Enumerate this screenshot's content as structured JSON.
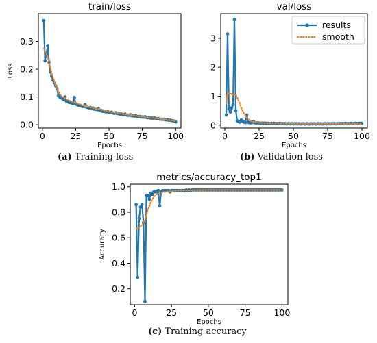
{
  "colors": {
    "results": "#1f77b4",
    "smooth": "#ff7f0e",
    "axis": "#000000"
  },
  "legend": {
    "placement": "top-right",
    "results_label": "results",
    "smooth_label": "smooth"
  },
  "captions": [
    {
      "letter": "(a)",
      "text": " Training loss"
    },
    {
      "letter": "(b)",
      "text": " Validation loss"
    },
    {
      "letter": "(c)",
      "text": " Training accuracy"
    }
  ],
  "chart_data": [
    {
      "type": "line",
      "title": "train/loss",
      "xlabel": "Epochs",
      "ylabel": "Loss",
      "xlim": [
        -3,
        104
      ],
      "ylim": [
        -0.012,
        0.4
      ],
      "xticks": [
        0,
        25,
        50,
        75,
        100
      ],
      "yticks": [
        0.0,
        0.1,
        0.2,
        0.3
      ],
      "ytick_labels": [
        "0.0",
        "0.1",
        "0.2",
        "0.3"
      ],
      "legend": false,
      "series": [
        {
          "name": "results",
          "style": "line-marker",
          "x": [
            1,
            2,
            3,
            4,
            5,
            6,
            7,
            8,
            9,
            10,
            11,
            12,
            13,
            14,
            15,
            16,
            17,
            18,
            19,
            20,
            21,
            22,
            23,
            24,
            25,
            26,
            27,
            28,
            29,
            30,
            31,
            32,
            33,
            34,
            35,
            36,
            37,
            38,
            39,
            40,
            41,
            42,
            43,
            44,
            45,
            46,
            47,
            48,
            49,
            50,
            51,
            52,
            53,
            54,
            55,
            56,
            57,
            58,
            59,
            60,
            61,
            62,
            63,
            64,
            65,
            66,
            67,
            68,
            69,
            70,
            71,
            72,
            73,
            74,
            75,
            76,
            77,
            78,
            79,
            80,
            81,
            82,
            83,
            84,
            85,
            86,
            87,
            88,
            89,
            90,
            91,
            92,
            93,
            94,
            95,
            96,
            97,
            98,
            99,
            100
          ],
          "y": [
            0.375,
            0.23,
            0.255,
            0.285,
            0.225,
            0.19,
            0.175,
            0.16,
            0.15,
            0.14,
            0.13,
            0.105,
            0.1,
            0.098,
            0.094,
            0.09,
            0.1,
            0.085,
            0.085,
            0.08,
            0.08,
            0.078,
            0.076,
            0.098,
            0.075,
            0.072,
            0.07,
            0.07,
            0.068,
            0.066,
            0.065,
            0.072,
            0.063,
            0.062,
            0.06,
            0.062,
            0.058,
            0.06,
            0.056,
            0.055,
            0.054,
            0.058,
            0.05,
            0.052,
            0.048,
            0.05,
            0.047,
            0.046,
            0.048,
            0.044,
            0.043,
            0.045,
            0.042,
            0.041,
            0.043,
            0.04,
            0.04,
            0.038,
            0.039,
            0.037,
            0.036,
            0.038,
            0.035,
            0.034,
            0.034,
            0.036,
            0.032,
            0.032,
            0.031,
            0.033,
            0.03,
            0.029,
            0.03,
            0.028,
            0.028,
            0.027,
            0.029,
            0.026,
            0.025,
            0.026,
            0.024,
            0.024,
            0.023,
            0.025,
            0.022,
            0.021,
            0.022,
            0.02,
            0.02,
            0.019,
            0.02,
            0.018,
            0.017,
            0.018,
            0.016,
            0.016,
            0.015,
            0.014,
            0.013,
            0.01
          ]
        },
        {
          "name": "smooth",
          "style": "dotted",
          "x": [
            1,
            3,
            5,
            7,
            9,
            11,
            13,
            15,
            20,
            25,
            30,
            40,
            50,
            60,
            70,
            80,
            90,
            100
          ],
          "y": [
            0.275,
            0.255,
            0.225,
            0.185,
            0.155,
            0.13,
            0.11,
            0.1,
            0.087,
            0.078,
            0.07,
            0.058,
            0.047,
            0.039,
            0.032,
            0.026,
            0.02,
            0.013
          ]
        }
      ]
    },
    {
      "type": "line",
      "title": "val/loss",
      "xlabel": "Epochs",
      "ylabel": "",
      "xlim": [
        -3,
        104
      ],
      "ylim": [
        -0.1,
        3.85
      ],
      "xticks": [
        0,
        25,
        50,
        75,
        100
      ],
      "yticks": [
        0,
        1,
        2,
        3
      ],
      "ytick_labels": [
        "0",
        "1",
        "2",
        "3"
      ],
      "legend": true,
      "series": [
        {
          "name": "results",
          "style": "line-marker",
          "x": [
            1,
            2,
            3,
            4,
            5,
            6,
            7,
            8,
            9,
            10,
            11,
            12,
            13,
            14,
            15,
            16,
            17,
            18,
            19,
            20,
            21,
            22,
            23,
            24,
            25,
            26,
            27,
            28,
            29,
            30,
            31,
            32,
            33,
            34,
            35,
            36,
            37,
            38,
            39,
            40,
            41,
            42,
            43,
            44,
            45,
            46,
            47,
            48,
            49,
            50,
            51,
            52,
            53,
            54,
            55,
            56,
            57,
            58,
            59,
            60,
            61,
            62,
            63,
            64,
            65,
            66,
            67,
            68,
            69,
            70,
            71,
            72,
            73,
            74,
            75,
            76,
            77,
            78,
            79,
            80,
            81,
            82,
            83,
            84,
            85,
            86,
            87,
            88,
            89,
            90,
            91,
            92,
            93,
            94,
            95,
            96,
            97,
            98,
            99,
            100
          ],
          "y": [
            0.35,
            3.15,
            0.55,
            0.45,
            0.6,
            0.7,
            3.65,
            0.5,
            0.15,
            0.12,
            0.1,
            0.18,
            0.13,
            0.1,
            0.09,
            0.35,
            0.1,
            0.08,
            0.08,
            0.09,
            0.12,
            0.08,
            0.07,
            0.08,
            0.07,
            0.06,
            0.07,
            0.06,
            0.07,
            0.06,
            0.06,
            0.06,
            0.05,
            0.06,
            0.05,
            0.06,
            0.05,
            0.05,
            0.05,
            0.06,
            0.05,
            0.05,
            0.05,
            0.05,
            0.04,
            0.05,
            0.05,
            0.04,
            0.05,
            0.04,
            0.05,
            0.05,
            0.04,
            0.05,
            0.04,
            0.04,
            0.05,
            0.04,
            0.04,
            0.05,
            0.04,
            0.04,
            0.05,
            0.04,
            0.05,
            0.04,
            0.04,
            0.05,
            0.04,
            0.05,
            0.04,
            0.04,
            0.05,
            0.04,
            0.05,
            0.05,
            0.04,
            0.05,
            0.05,
            0.05,
            0.04,
            0.05,
            0.05,
            0.05,
            0.05,
            0.05,
            0.05,
            0.06,
            0.05,
            0.05,
            0.05,
            0.06,
            0.05,
            0.05,
            0.06,
            0.06,
            0.05,
            0.06,
            0.06,
            0.06
          ]
        },
        {
          "name": "smooth",
          "style": "dotted",
          "x": [
            1,
            2,
            4,
            6,
            8,
            10,
            12,
            14,
            16,
            18,
            20,
            25,
            30,
            40,
            50,
            60,
            70,
            80,
            90,
            100
          ],
          "y": [
            0.75,
            1.1,
            1.1,
            1.05,
            1.05,
            0.85,
            0.6,
            0.4,
            0.25,
            0.17,
            0.12,
            0.08,
            0.07,
            0.06,
            0.05,
            0.05,
            0.05,
            0.05,
            0.05,
            0.05
          ]
        }
      ]
    },
    {
      "type": "line",
      "title": "metrics/accuracy_top1",
      "xlabel": "Epochs",
      "ylabel": "Accuracy",
      "xlim": [
        -3,
        104
      ],
      "ylim": [
        0.075,
        1.02
      ],
      "xticks": [
        0,
        25,
        50,
        75,
        100
      ],
      "yticks": [
        0.2,
        0.4,
        0.6,
        0.8,
        1.0
      ],
      "ytick_labels": [
        "0.2",
        "0.4",
        "0.6",
        "0.8",
        "1.0"
      ],
      "legend": false,
      "series": [
        {
          "name": "results",
          "style": "line-marker",
          "x": [
            1,
            2,
            3,
            4,
            5,
            6,
            7,
            8,
            9,
            10,
            11,
            12,
            13,
            14,
            15,
            16,
            17,
            18,
            19,
            20,
            21,
            22,
            23,
            24,
            25,
            26,
            27,
            28,
            29,
            30,
            31,
            32,
            33,
            34,
            35,
            36,
            37,
            38,
            39,
            40,
            41,
            42,
            43,
            44,
            45,
            46,
            47,
            48,
            49,
            50,
            51,
            52,
            53,
            54,
            55,
            56,
            57,
            58,
            59,
            60,
            61,
            62,
            63,
            64,
            65,
            66,
            67,
            68,
            69,
            70,
            71,
            72,
            73,
            74,
            75,
            76,
            77,
            78,
            79,
            80,
            81,
            82,
            83,
            84,
            85,
            86,
            87,
            88,
            89,
            90,
            91,
            92,
            93,
            94,
            95,
            96,
            97,
            98,
            99,
            100
          ],
          "y": [
            0.86,
            0.29,
            0.75,
            0.84,
            0.86,
            0.72,
            0.1,
            0.93,
            0.93,
            0.9,
            0.95,
            0.94,
            0.96,
            0.96,
            0.96,
            0.97,
            0.85,
            0.96,
            0.97,
            0.97,
            0.97,
            0.97,
            0.97,
            0.96,
            0.97,
            0.97,
            0.97,
            0.97,
            0.97,
            0.97,
            0.97,
            0.97,
            0.97,
            0.97,
            0.975,
            0.97,
            0.975,
            0.97,
            0.975,
            0.975,
            0.975,
            0.975,
            0.975,
            0.975,
            0.975,
            0.975,
            0.975,
            0.975,
            0.975,
            0.975,
            0.975,
            0.975,
            0.975,
            0.975,
            0.975,
            0.975,
            0.975,
            0.975,
            0.975,
            0.975,
            0.975,
            0.975,
            0.975,
            0.975,
            0.975,
            0.975,
            0.975,
            0.975,
            0.975,
            0.975,
            0.975,
            0.975,
            0.975,
            0.975,
            0.975,
            0.975,
            0.975,
            0.975,
            0.975,
            0.975,
            0.975,
            0.975,
            0.975,
            0.975,
            0.975,
            0.975,
            0.975,
            0.975,
            0.975,
            0.975,
            0.975,
            0.975,
            0.975,
            0.975,
            0.975,
            0.975,
            0.975,
            0.975,
            0.975,
            0.975
          ]
        },
        {
          "name": "smooth",
          "style": "dotted",
          "x": [
            1,
            3,
            5,
            7,
            9,
            11,
            13,
            15,
            17,
            20,
            25,
            30,
            40,
            50,
            60,
            70,
            80,
            90,
            100
          ],
          "y": [
            0.67,
            0.68,
            0.7,
            0.74,
            0.82,
            0.88,
            0.92,
            0.94,
            0.95,
            0.96,
            0.965,
            0.97,
            0.972,
            0.975,
            0.975,
            0.975,
            0.975,
            0.975,
            0.975
          ]
        }
      ]
    }
  ]
}
